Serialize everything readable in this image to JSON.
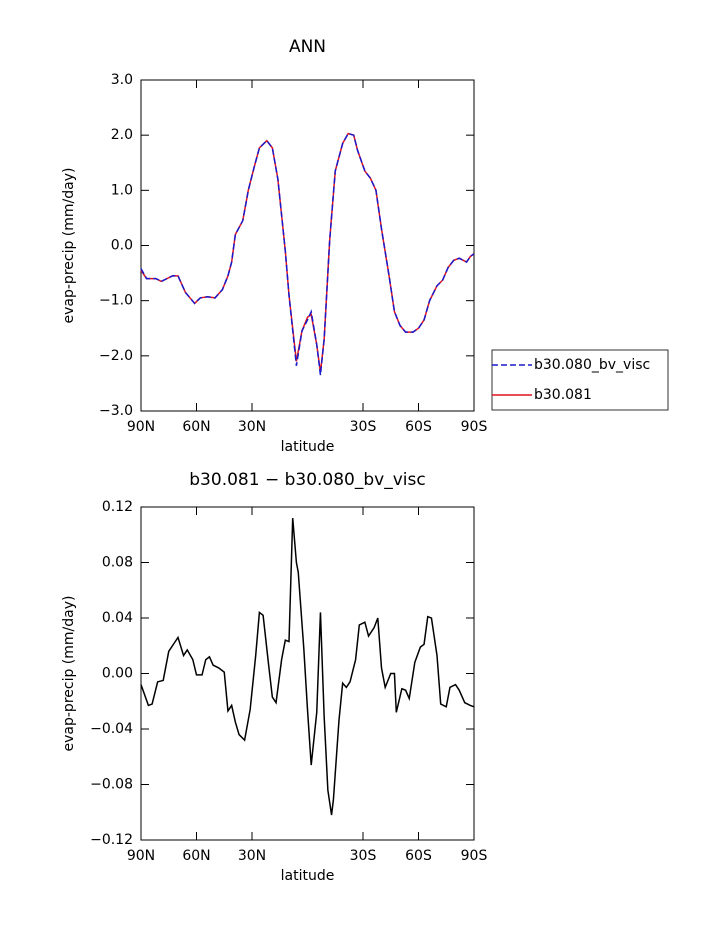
{
  "chart_data": [
    {
      "type": "line",
      "title": "ANN",
      "xlabel": "latitude",
      "ylabel": "evap-precip (mm/day)",
      "xlim": [
        90,
        -90
      ],
      "ylim": [
        -3,
        3
      ],
      "xticks": [
        {
          "value": 90,
          "label": "90N"
        },
        {
          "value": 60,
          "label": "60N"
        },
        {
          "value": 30,
          "label": "30N"
        },
        {
          "value": -30,
          "label": "30S"
        },
        {
          "value": -60,
          "label": "60S"
        },
        {
          "value": -90,
          "label": "90S"
        }
      ],
      "yticks": [
        {
          "value": 3,
          "label": "3.0"
        },
        {
          "value": 2,
          "label": "2.0"
        },
        {
          "value": 1,
          "label": "1.0"
        },
        {
          "value": 0,
          "label": "0.0"
        },
        {
          "value": -1,
          "label": "−1.0"
        },
        {
          "value": -2,
          "label": "−2.0"
        },
        {
          "value": -3,
          "label": "−3.0"
        }
      ],
      "legend": "right",
      "x": [
        90,
        87,
        82,
        79,
        73,
        70,
        66,
        64,
        61,
        58,
        54,
        50,
        46,
        43,
        41,
        39,
        35,
        32,
        29,
        26,
        22,
        19,
        16,
        12,
        10,
        6,
        3,
        0,
        -2,
        -5,
        -7,
        -9,
        -12,
        -15,
        -19,
        -22,
        -25,
        -27,
        -31,
        -34,
        -37,
        -40,
        -44,
        -47,
        -50,
        -53,
        -57,
        -60,
        -63,
        -66,
        -70,
        -73,
        -76,
        -79,
        -82,
        -86,
        -88,
        -90
      ],
      "series": [
        {
          "name": "b30.080_bv_visc",
          "color": "#1a1acc",
          "style": "dashed",
          "values": [
            -0.42,
            -0.6,
            -0.6,
            -0.65,
            -0.55,
            -0.55,
            -0.85,
            -0.93,
            -1.05,
            -0.95,
            -0.93,
            -0.95,
            -0.8,
            -0.55,
            -0.3,
            0.2,
            0.45,
            1.0,
            1.4,
            1.77,
            1.9,
            1.77,
            1.2,
            -0.1,
            -0.9,
            -2.18,
            -1.55,
            -1.35,
            -1.2,
            -1.8,
            -2.35,
            -1.7,
            0.1,
            1.35,
            1.85,
            2.03,
            2.0,
            1.73,
            1.35,
            1.22,
            1.0,
            0.3,
            -0.53,
            -1.2,
            -1.45,
            -1.57,
            -1.57,
            -1.5,
            -1.35,
            -1.0,
            -0.73,
            -0.63,
            -0.4,
            -0.27,
            -0.23,
            -0.3,
            -0.2,
            -0.15
          ]
        },
        {
          "name": "b30.081",
          "color": "#e0141e",
          "style": "solid",
          "values": [
            -0.45,
            -0.6,
            -0.6,
            -0.65,
            -0.55,
            -0.55,
            -0.85,
            -0.93,
            -1.05,
            -0.95,
            -0.93,
            -0.95,
            -0.8,
            -0.55,
            -0.3,
            0.2,
            0.45,
            1.0,
            1.4,
            1.77,
            1.9,
            1.77,
            1.2,
            -0.1,
            -0.9,
            -2.1,
            -1.55,
            -1.3,
            -1.25,
            -1.8,
            -2.3,
            -1.7,
            0.1,
            1.35,
            1.85,
            2.03,
            2.0,
            1.73,
            1.35,
            1.22,
            1.0,
            0.3,
            -0.53,
            -1.2,
            -1.45,
            -1.57,
            -1.57,
            -1.5,
            -1.35,
            -1.0,
            -0.73,
            -0.63,
            -0.4,
            -0.27,
            -0.23,
            -0.3,
            -0.2,
            -0.15
          ]
        }
      ]
    },
    {
      "type": "line",
      "title": "b30.081 − b30.080_bv_visc",
      "xlabel": "latitude",
      "ylabel": "evap-precip (mm/day)",
      "xlim": [
        90,
        -90
      ],
      "ylim": [
        -0.12,
        0.12
      ],
      "xticks": [
        {
          "value": 90,
          "label": "90N"
        },
        {
          "value": 60,
          "label": "60N"
        },
        {
          "value": 30,
          "label": "30N"
        },
        {
          "value": -30,
          "label": "30S"
        },
        {
          "value": -60,
          "label": "60S"
        },
        {
          "value": -90,
          "label": "90S"
        }
      ],
      "yticks": [
        0.12,
        0.08,
        0.04,
        {
          "value": 0,
          "label": "0.00"
        },
        {
          "value": -0.04,
          "label": "−0.04"
        },
        {
          "value": -0.08,
          "label": "−0.08"
        },
        {
          "value": -0.12,
          "label": "−0.12"
        }
      ],
      "x": [
        90,
        86,
        84,
        81,
        78,
        75,
        72,
        70,
        67,
        65,
        62,
        60,
        57,
        55,
        53,
        51,
        48,
        45,
        43,
        41,
        39,
        37,
        34,
        31,
        28,
        26,
        24,
        21,
        19,
        17,
        14,
        12,
        10,
        8,
        6,
        5,
        2,
        0,
        -2,
        -5,
        -7,
        -9,
        -11,
        -13,
        -14,
        -17,
        -19,
        -21,
        -23,
        -26,
        -28,
        -31,
        -33,
        -36,
        -38,
        -40,
        -42,
        -45,
        -47,
        -48,
        -51,
        -53,
        -55,
        -58,
        -61,
        -63,
        -65,
        -67,
        -70,
        -72,
        -75,
        -77,
        -80,
        -82,
        -85,
        -88,
        -90
      ],
      "color": "#000000",
      "values": [
        -0.008,
        -0.023,
        -0.022,
        -0.006,
        -0.005,
        0.016,
        0.022,
        0.026,
        0.013,
        0.017,
        0.01,
        -0.001,
        -0.001,
        0.01,
        0.012,
        0.006,
        0.004,
        0.001,
        -0.027,
        -0.023,
        -0.035,
        -0.044,
        -0.048,
        -0.026,
        0.013,
        0.044,
        0.042,
        0.006,
        -0.017,
        -0.021,
        0.01,
        0.024,
        0.023,
        0.112,
        0.08,
        0.073,
        0.018,
        -0.026,
        -0.066,
        -0.028,
        0.044,
        -0.031,
        -0.084,
        -0.102,
        -0.091,
        -0.034,
        -0.007,
        -0.01,
        -0.006,
        0.01,
        0.035,
        0.037,
        0.027,
        0.033,
        0.04,
        0.004,
        -0.01,
        0,
        0,
        -0.028,
        -0.011,
        -0.012,
        -0.018,
        0.008,
        0.019,
        0.021,
        0.041,
        0.04,
        0.013,
        -0.022,
        -0.024,
        -0.01,
        -0.008,
        -0.012,
        -0.021,
        -0.023,
        -0.024
      ]
    }
  ]
}
